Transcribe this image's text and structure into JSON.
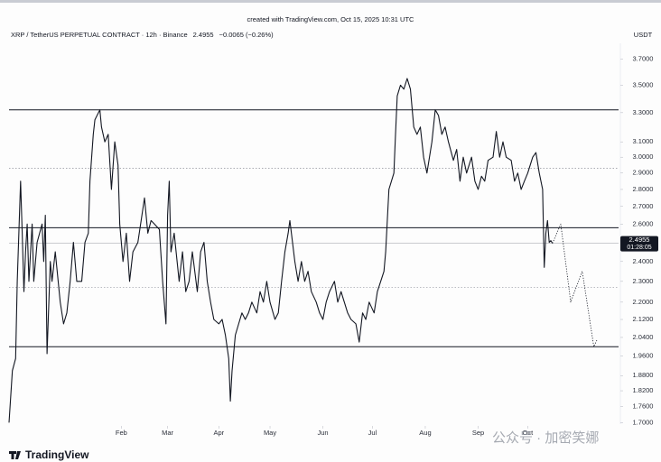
{
  "chart_data": {
    "type": "line",
    "watermark_top": "created with TradingView.com, Oct 15, 2025 10:31 UTC",
    "title": "XRP / TetherUS PERPETUAL CONTRACT · 12h · Binance",
    "last_price": 2.4955,
    "change": "−0.0065 (−0.26%)",
    "currency": "USDT",
    "countdown": "01:28:05",
    "brand": "TradingView",
    "watermark": "公众号 · 加密笑娜",
    "yscale": "log",
    "ylim": [
      1.64,
      3.85
    ],
    "yticks": [
      {
        "value": 3.7,
        "label": "3.7000"
      },
      {
        "value": 3.5,
        "label": "3.5000"
      },
      {
        "value": 3.3,
        "label": "3.3000"
      },
      {
        "value": 3.1,
        "label": "3.1000"
      },
      {
        "value": 3.0,
        "label": "3.0000"
      },
      {
        "value": 2.9,
        "label": "2.9000"
      },
      {
        "value": 2.8,
        "label": "2.8000"
      },
      {
        "value": 2.7,
        "label": "2.7000"
      },
      {
        "value": 2.6,
        "label": "2.6000"
      },
      {
        "value": 2.4,
        "label": "2.4000"
      },
      {
        "value": 2.3,
        "label": "2.3000"
      },
      {
        "value": 2.2,
        "label": "2.2000"
      },
      {
        "value": 2.12,
        "label": "2.1200"
      },
      {
        "value": 2.04,
        "label": "2.0400"
      },
      {
        "value": 1.96,
        "label": "1.9600"
      },
      {
        "value": 1.88,
        "label": "1.8800"
      },
      {
        "value": 1.82,
        "label": "1.8200"
      },
      {
        "value": 1.76,
        "label": "1.7600"
      },
      {
        "value": 1.7,
        "label": "1.7000"
      }
    ],
    "xlim": [
      0,
      369
    ],
    "xticks": [
      {
        "value": 68,
        "label": "Feb"
      },
      {
        "value": 96,
        "label": "Mar"
      },
      {
        "value": 127,
        "label": "Apr"
      },
      {
        "value": 158,
        "label": "May"
      },
      {
        "value": 190,
        "label": "Jun"
      },
      {
        "value": 220,
        "label": "Jul"
      },
      {
        "value": 252,
        "label": "Aug"
      },
      {
        "value": 284,
        "label": "Sep"
      },
      {
        "value": 314,
        "label": "Oct"
      }
    ],
    "levels": [
      3.32,
      2.58,
      2.0
    ],
    "dotted_levels": [
      2.93,
      2.27
    ],
    "x": [
      0,
      2,
      4,
      5,
      7,
      8,
      9,
      10,
      11,
      12,
      14,
      15,
      17,
      20,
      21,
      22,
      23,
      25,
      26,
      28,
      31,
      33,
      35,
      37,
      39,
      41,
      44,
      46,
      48,
      49,
      51,
      52,
      55,
      56,
      58,
      60,
      62,
      64,
      66,
      67,
      69,
      71,
      73,
      75,
      78,
      80,
      82,
      84,
      86,
      88,
      91,
      93,
      95,
      96,
      97,
      98,
      100,
      103,
      105,
      107,
      109,
      111,
      114,
      116,
      118,
      120,
      122,
      124,
      127,
      129,
      131,
      133,
      134,
      135,
      137,
      139,
      141,
      143,
      145,
      147,
      150,
      152,
      154,
      156,
      158,
      161,
      163,
      165,
      167,
      169,
      170,
      173,
      175,
      177,
      179,
      181,
      183,
      186,
      188,
      190,
      192,
      194,
      197,
      199,
      201,
      203,
      205,
      207,
      210,
      212,
      214,
      216,
      218,
      221,
      223,
      225,
      227,
      228,
      229,
      230,
      233,
      234,
      235,
      237,
      239,
      241,
      243,
      245,
      247,
      249,
      251,
      253,
      256,
      258,
      260,
      262,
      264,
      266,
      269,
      271,
      273,
      275,
      277,
      280,
      282,
      284,
      286,
      288,
      290,
      293,
      295,
      297,
      299,
      301,
      304,
      306,
      308,
      310,
      312,
      314,
      317,
      319,
      321,
      323,
      324,
      325,
      326,
      327,
      328,
      329
    ],
    "series": [
      {
        "color": "#131722",
        "values": [
          1.7,
          1.9,
          1.95,
          2.3,
          2.85,
          2.55,
          2.25,
          2.45,
          2.6,
          2.3,
          2.6,
          2.3,
          2.5,
          2.6,
          2.4,
          2.65,
          1.97,
          2.4,
          2.3,
          2.45,
          2.2,
          2.1,
          2.15,
          2.3,
          2.5,
          2.3,
          2.3,
          2.5,
          2.55,
          2.85,
          3.15,
          3.25,
          3.32,
          3.2,
          3.1,
          3.15,
          2.8,
          3.1,
          2.95,
          2.6,
          2.4,
          2.55,
          2.3,
          2.45,
          2.5,
          2.62,
          2.75,
          2.55,
          2.62,
          2.6,
          2.57,
          2.3,
          2.1,
          2.65,
          2.85,
          2.45,
          2.55,
          2.3,
          2.45,
          2.25,
          2.3,
          2.45,
          2.25,
          2.45,
          2.5,
          2.3,
          2.2,
          2.12,
          2.1,
          2.12,
          2.05,
          1.95,
          1.78,
          1.9,
          2.05,
          2.1,
          2.15,
          2.12,
          2.15,
          2.2,
          2.15,
          2.25,
          2.2,
          2.3,
          2.2,
          2.12,
          2.15,
          2.3,
          2.45,
          2.55,
          2.62,
          2.4,
          2.3,
          2.4,
          2.3,
          2.35,
          2.25,
          2.2,
          2.15,
          2.12,
          2.2,
          2.25,
          2.3,
          2.2,
          2.25,
          2.2,
          2.15,
          2.12,
          2.1,
          2.02,
          2.15,
          2.12,
          2.2,
          2.15,
          2.25,
          2.3,
          2.35,
          2.45,
          2.62,
          2.8,
          2.9,
          3.15,
          3.42,
          3.5,
          3.47,
          3.55,
          3.47,
          3.2,
          3.15,
          3.2,
          3.0,
          2.9,
          3.1,
          3.32,
          3.28,
          3.15,
          3.2,
          3.1,
          2.98,
          3.05,
          2.85,
          3.0,
          2.9,
          3.0,
          2.85,
          2.8,
          2.88,
          2.85,
          2.98,
          3.0,
          3.17,
          3.0,
          3.1,
          3.0,
          2.98,
          2.85,
          2.9,
          2.8,
          2.85,
          2.9,
          3.0,
          3.03,
          2.9,
          2.8,
          2.37,
          2.55,
          2.62,
          2.5,
          2.51,
          2.4955
        ]
      }
    ],
    "projection": {
      "color": "#131722",
      "x": [
        329,
        334,
        340,
        347,
        354,
        356
      ],
      "values": [
        2.4955,
        2.6,
        2.2,
        2.35,
        2.0,
        2.03
      ]
    }
  }
}
